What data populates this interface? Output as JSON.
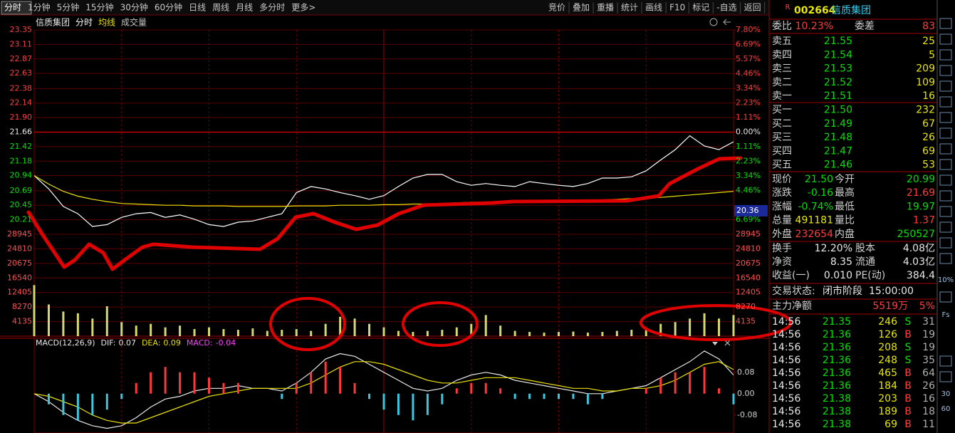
{
  "toolbar": {
    "tabs": [
      "分时",
      "1分钟",
      "5分钟",
      "15分钟",
      "30分钟",
      "60分钟",
      "日线",
      "周线",
      "月线",
      "多分时",
      "更多>"
    ],
    "buttons": [
      "竞价",
      "叠加",
      "重播",
      "统计",
      "画线",
      "F10",
      "标记",
      "-自选",
      "返回"
    ]
  },
  "chart_data": [
    {
      "type": "line",
      "title": "信质集团",
      "x": [
        0,
        5,
        10,
        15,
        20,
        25,
        30,
        35,
        40,
        45,
        50,
        55,
        60,
        65,
        70,
        75,
        80,
        85,
        90,
        95,
        100,
        105,
        110,
        115,
        120,
        125,
        130,
        135,
        140,
        145,
        150,
        155,
        160,
        165,
        170,
        175,
        180,
        185,
        190,
        195,
        200,
        205,
        210,
        215,
        220,
        225,
        230,
        235,
        240
      ],
      "xlim": [
        0,
        240
      ],
      "xticks": [
        0,
        30,
        60,
        90,
        120,
        150,
        180,
        210,
        240
      ],
      "series": [
        {
          "name": "分时",
          "color": "#ffffff",
          "values": [
            20.94,
            20.72,
            20.43,
            20.31,
            20.1,
            20.13,
            20.25,
            20.31,
            20.33,
            20.25,
            20.29,
            20.22,
            20.13,
            20.1,
            20.17,
            20.19,
            20.25,
            20.31,
            20.66,
            20.76,
            20.72,
            20.66,
            20.61,
            20.55,
            20.61,
            20.76,
            20.9,
            20.96,
            20.96,
            20.84,
            20.78,
            20.81,
            20.78,
            20.76,
            20.84,
            20.81,
            20.78,
            20.76,
            20.81,
            20.9,
            20.9,
            20.92,
            21.02,
            21.2,
            21.37,
            21.6,
            21.43,
            21.37,
            21.5
          ]
        },
        {
          "name": "均线",
          "color": "#e8e000",
          "values": [
            20.94,
            20.8,
            20.68,
            20.6,
            20.55,
            20.51,
            20.48,
            20.47,
            20.46,
            20.45,
            20.45,
            20.44,
            20.44,
            20.44,
            20.43,
            20.43,
            20.43,
            20.43,
            20.44,
            20.44,
            20.44,
            20.45,
            20.45,
            20.45,
            20.46,
            20.46,
            20.47,
            20.47,
            20.48,
            20.49,
            20.5,
            20.5,
            20.51,
            20.51,
            20.52,
            20.52,
            20.53,
            20.53,
            20.54,
            20.54,
            20.55,
            20.56,
            20.57,
            20.58,
            20.6,
            20.62,
            20.64,
            20.66,
            20.68
          ]
        }
      ],
      "ylim": [
        19.97,
        23.35
      ],
      "yticks": [
        23.35,
        23.11,
        22.87,
        22.63,
        22.38,
        22.14,
        {
          "value": 21.9,
          "label": "21.90"
        },
        21.66,
        21.42,
        21.18,
        20.94,
        20.69,
        20.45,
        20.21
      ],
      "prev_close": 21.66,
      "y2lim": [
        -7.8,
        7.8
      ],
      "y2ticks": [
        {
          "value": 7.8,
          "label": "7.80%"
        },
        {
          "value": 6.69,
          "label": "6.69%"
        },
        {
          "value": 5.57,
          "label": "5.57%"
        },
        {
          "value": 4.46,
          "label": "4.46%"
        },
        {
          "value": 3.34,
          "label": "3.34%"
        },
        {
          "value": 2.23,
          "label": "2.23%"
        },
        {
          "value": 1.11,
          "label": "1.11%"
        },
        {
          "value": 0,
          "label": "0.00%"
        },
        {
          "value": -1.11,
          "label": "1.11%"
        },
        {
          "value": -2.23,
          "label": "2.23%"
        },
        {
          "value": -3.34,
          "label": "3.34%"
        },
        {
          "value": -4.46,
          "label": "4.46%"
        },
        {
          "value": -6.69,
          "label": "6.69%"
        }
      ],
      "cursor_price": 20.36,
      "grid": true
    },
    {
      "type": "bar",
      "title": "成交量",
      "color": "#d8d870",
      "x": [
        0,
        5,
        10,
        15,
        20,
        25,
        30,
        35,
        40,
        45,
        50,
        55,
        60,
        65,
        70,
        75,
        80,
        85,
        90,
        95,
        100,
        105,
        110,
        115,
        120,
        125,
        130,
        135,
        140,
        145,
        150,
        155,
        160,
        165,
        170,
        175,
        180,
        185,
        190,
        195,
        200,
        205,
        210,
        215,
        220,
        225,
        230,
        235,
        240
      ],
      "values": [
        14500,
        9000,
        7000,
        6500,
        5000,
        8500,
        4000,
        3000,
        3500,
        2500,
        3000,
        2000,
        2500,
        2000,
        1800,
        2200,
        1500,
        1800,
        2000,
        1500,
        3500,
        5500,
        5000,
        3500,
        2500,
        1500,
        1200,
        1500,
        1800,
        2500,
        3500,
        6000,
        3000,
        1500,
        1200,
        1000,
        1200,
        1300,
        1000,
        1200,
        1500,
        1800,
        2500,
        3500,
        4000,
        5000,
        6500,
        5000,
        6000
      ],
      "ylim": [
        0,
        28945
      ],
      "yticks": [
        28945,
        24810,
        20675,
        16540,
        12405,
        8270,
        4135
      ],
      "grid": true
    },
    {
      "type": "macd",
      "title": "MACD(12,26,9)",
      "x": [
        0,
        5,
        10,
        15,
        20,
        25,
        30,
        35,
        40,
        45,
        50,
        55,
        60,
        65,
        70,
        75,
        80,
        85,
        90,
        95,
        100,
        105,
        110,
        115,
        120,
        125,
        130,
        135,
        140,
        145,
        150,
        155,
        160,
        165,
        170,
        175,
        180,
        185,
        190,
        195,
        200,
        205,
        210,
        215,
        220,
        225,
        230,
        235,
        240
      ],
      "series": [
        {
          "name": "DIF:",
          "readout": 0.07,
          "color": "#e8e8e8",
          "values": [
            0,
            -0.03,
            -0.07,
            -0.1,
            -0.12,
            -0.13,
            -0.12,
            -0.09,
            -0.05,
            -0.02,
            -0.01,
            0.01,
            0.02,
            0.02,
            0.03,
            0.02,
            0.02,
            0.01,
            0.04,
            0.08,
            0.13,
            0.15,
            0.14,
            0.11,
            0.08,
            0.05,
            0.02,
            0.01,
            0.02,
            0.05,
            0.07,
            0.08,
            0.07,
            0.05,
            0.04,
            0.03,
            0.02,
            0.01,
            0,
            0,
            0.01,
            0.02,
            0.03,
            0.06,
            0.09,
            0.12,
            0.16,
            0.13,
            0.07
          ]
        },
        {
          "name": "DEA:",
          "readout": 0.09,
          "color": "#e8e000",
          "values": [
            0,
            -0.01,
            -0.03,
            -0.05,
            -0.08,
            -0.1,
            -0.11,
            -0.11,
            -0.09,
            -0.07,
            -0.05,
            -0.03,
            -0.01,
            0,
            0.01,
            0.02,
            0.02,
            0.02,
            0.02,
            0.04,
            0.07,
            0.1,
            0.12,
            0.12,
            0.11,
            0.09,
            0.07,
            0.05,
            0.04,
            0.04,
            0.05,
            0.06,
            0.06,
            0.06,
            0.05,
            0.04,
            0.03,
            0.02,
            0.02,
            0.01,
            0.01,
            0.02,
            0.02,
            0.03,
            0.05,
            0.08,
            0.11,
            0.12,
            0.09
          ]
        },
        {
          "name": "MACD:",
          "readout": -0.04,
          "color": "#ff40ff",
          "bar_colors": [
            "#ff3838",
            "#38c8e0"
          ],
          "values": [
            0,
            -0.04,
            -0.08,
            -0.1,
            -0.08,
            -0.06,
            -0.02,
            0.04,
            0.08,
            0.1,
            0.08,
            0.08,
            0.06,
            0.04,
            0.04,
            0,
            0,
            -0.02,
            0.04,
            0.08,
            0.12,
            0.1,
            0.04,
            -0.02,
            -0.06,
            -0.08,
            -0.1,
            -0.08,
            -0.04,
            0.02,
            0.04,
            0.04,
            0.02,
            -0.02,
            -0.02,
            -0.02,
            -0.02,
            -0.02,
            -0.04,
            -0.02,
            0,
            0,
            0.02,
            0.06,
            0.08,
            0.08,
            0.1,
            0.02,
            -0.04
          ]
        }
      ],
      "ylim": [
        -0.15,
        0.21
      ],
      "yticks": [
        0.08,
        {
          "value": 0,
          "label": "0.00"
        },
        -0.08
      ]
    }
  ],
  "quote": {
    "badge": "R",
    "code": "002664",
    "name": "信质集团",
    "ratio": [
      [
        [
          "委比",
          "#d0d0d0"
        ],
        [
          "10.23%",
          "#ff3c3c"
        ],
        [
          "委差",
          "#d0d0d0"
        ],
        [
          "83",
          "#ff3c3c"
        ]
      ]
    ],
    "book": [
      [
        [
          "卖五",
          "#d0d0d0"
        ],
        [
          "21.55",
          "#00e000"
        ],
        [
          "25",
          "#e8e800"
        ]
      ],
      [
        [
          "卖四",
          "#d0d0d0"
        ],
        [
          "21.54",
          "#00e000"
        ],
        [
          "5",
          "#e8e800"
        ]
      ],
      [
        [
          "卖三",
          "#d0d0d0"
        ],
        [
          "21.53",
          "#00e000"
        ],
        [
          "209",
          "#e8e800"
        ]
      ],
      [
        [
          "卖二",
          "#d0d0d0"
        ],
        [
          "21.52",
          "#00e000"
        ],
        [
          "109",
          "#e8e800"
        ]
      ],
      [
        [
          "卖一",
          "#d0d0d0"
        ],
        [
          "21.51",
          "#00e000"
        ],
        [
          "16",
          "#e8e800"
        ]
      ],
      [
        [
          "买一",
          "#d0d0d0"
        ],
        [
          "21.50",
          "#00e000"
        ],
        [
          "232",
          "#e8e800"
        ]
      ],
      [
        [
          "买二",
          "#d0d0d0"
        ],
        [
          "21.49",
          "#00e000"
        ],
        [
          "67",
          "#e8e800"
        ]
      ],
      [
        [
          "买三",
          "#d0d0d0"
        ],
        [
          "21.48",
          "#00e000"
        ],
        [
          "26",
          "#e8e800"
        ]
      ],
      [
        [
          "买四",
          "#d0d0d0"
        ],
        [
          "21.47",
          "#00e000"
        ],
        [
          "69",
          "#e8e800"
        ]
      ],
      [
        [
          "买五",
          "#d0d0d0"
        ],
        [
          "21.46",
          "#00e000"
        ],
        [
          "53",
          "#e8e800"
        ]
      ]
    ],
    "stats": [
      [
        [
          "现价",
          "#d0d0d0"
        ],
        [
          "21.50",
          "#00e000"
        ],
        [
          "今开",
          "#d0d0d0"
        ],
        [
          "20.99",
          "#00e000"
        ]
      ],
      [
        [
          "涨跌",
          "#d0d0d0"
        ],
        [
          "-0.16",
          "#00e000"
        ],
        [
          "最高",
          "#d0d0d0"
        ],
        [
          "21.69",
          "#ff3c3c"
        ]
      ],
      [
        [
          "涨幅",
          "#d0d0d0"
        ],
        [
          "-0.74%",
          "#00e000"
        ],
        [
          "最低",
          "#d0d0d0"
        ],
        [
          "19.97",
          "#00e000"
        ]
      ],
      [
        [
          "总量",
          "#d0d0d0"
        ],
        [
          "491181",
          "#e8e800"
        ],
        [
          "量比",
          "#d0d0d0"
        ],
        [
          "1.37",
          "#ff3c3c"
        ]
      ],
      [
        [
          "外盘",
          "#d0d0d0"
        ],
        [
          "232654",
          "#ff3c3c"
        ],
        [
          "内盘",
          "#d0d0d0"
        ],
        [
          "250527",
          "#00e000"
        ]
      ]
    ],
    "fund": [
      [
        [
          "换手",
          "#d0d0d0"
        ],
        [
          "12.20%",
          "#e8e8e8"
        ],
        [
          "股本",
          "#d0d0d0"
        ],
        [
          "4.08亿",
          "#e8e8e8"
        ]
      ],
      [
        [
          "净资",
          "#d0d0d0"
        ],
        [
          "8.35",
          "#e8e8e8"
        ],
        [
          "流通",
          "#d0d0d0"
        ],
        [
          "4.03亿",
          "#e8e8e8"
        ]
      ],
      [
        [
          "收益(一)",
          "#d0d0d0"
        ],
        [
          "0.010",
          "#e8e8e8"
        ],
        [
          "PE(动)",
          "#d0d0d0"
        ],
        [
          "384.4",
          "#e8e8e8"
        ]
      ]
    ],
    "status": [
      [
        [
          "交易状态:",
          "#d0d0d0"
        ],
        [
          "闭市阶段",
          "#e8e8e8"
        ],
        [
          "15:00:00",
          "#e8e8e8"
        ]
      ]
    ],
    "main": [
      [
        [
          "主力净额",
          "#d0d0d0"
        ],
        [
          "5519万",
          "#ff3c3c"
        ],
        [
          "5%",
          "#ff3c3c"
        ]
      ]
    ],
    "trades": [
      [
        [
          "14:56",
          "#e8e8e8"
        ],
        [
          "21.35",
          "#00e000"
        ],
        [
          "246",
          "#e8e800"
        ],
        [
          "S",
          "#00e000"
        ],
        [
          "31",
          "#b0b0b0"
        ]
      ],
      [
        [
          "14:56",
          "#e8e8e8"
        ],
        [
          "21.36",
          "#00e000"
        ],
        [
          "126",
          "#e8e800"
        ],
        [
          "B",
          "#ff3c3c"
        ],
        [
          "19",
          "#b0b0b0"
        ]
      ],
      [
        [
          "14:56",
          "#e8e8e8"
        ],
        [
          "21.36",
          "#00e000"
        ],
        [
          "208",
          "#e8e800"
        ],
        [
          "S",
          "#00e000"
        ],
        [
          "19",
          "#b0b0b0"
        ]
      ],
      [
        [
          "14:56",
          "#e8e8e8"
        ],
        [
          "21.36",
          "#00e000"
        ],
        [
          "248",
          "#e8e800"
        ],
        [
          "S",
          "#00e000"
        ],
        [
          "35",
          "#b0b0b0"
        ]
      ],
      [
        [
          "14:56",
          "#e8e8e8"
        ],
        [
          "21.36",
          "#00e000"
        ],
        [
          "465",
          "#e8e800"
        ],
        [
          "B",
          "#ff3c3c"
        ],
        [
          "64",
          "#b0b0b0"
        ]
      ],
      [
        [
          "14:56",
          "#e8e8e8"
        ],
        [
          "21.36",
          "#00e000"
        ],
        [
          "184",
          "#e8e800"
        ],
        [
          "B",
          "#ff3c3c"
        ],
        [
          "26",
          "#b0b0b0"
        ]
      ],
      [
        [
          "14:56",
          "#e8e8e8"
        ],
        [
          "21.38",
          "#00e000"
        ],
        [
          "203",
          "#e8e800"
        ],
        [
          "B",
          "#ff3c3c"
        ],
        [
          "16",
          "#b0b0b0"
        ]
      ],
      [
        [
          "14:56",
          "#e8e8e8"
        ],
        [
          "21.38",
          "#00e000"
        ],
        [
          "189",
          "#e8e800"
        ],
        [
          "B",
          "#ff3c3c"
        ],
        [
          "18",
          "#b0b0b0"
        ]
      ],
      [
        [
          "14:56",
          "#e8e8e8"
        ],
        [
          "21.38",
          "#00e000"
        ],
        [
          "69",
          "#e8e800"
        ],
        [
          "B",
          "#ff3c3c"
        ],
        [
          "11",
          "#b0b0b0"
        ]
      ]
    ]
  },
  "sidebar": [
    "10%",
    "Fs",
    "30",
    "60"
  ]
}
